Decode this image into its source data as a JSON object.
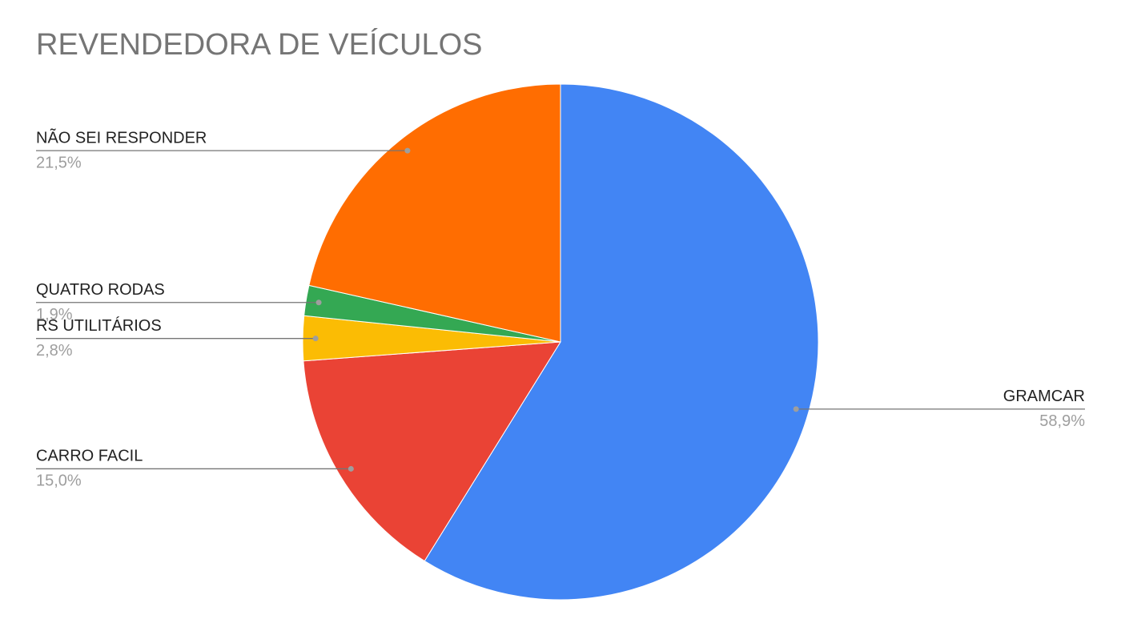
{
  "chart_data": {
    "type": "pie",
    "title": "REVENDEDORA DE VEÍCULOS",
    "categories": [
      "GRAMCAR",
      "CARRO FACIL",
      "RS UTILITÁRIOS",
      "QUATRO RODAS",
      "NÃO SEI RESPONDER"
    ],
    "values": [
      58.9,
      15.0,
      2.8,
      1.9,
      21.5
    ],
    "value_labels": [
      "58,9%",
      "15,0%",
      "2,8%",
      "1,9%",
      "21,5%"
    ],
    "colors": [
      "#4285f4",
      "#ea4335",
      "#fbbc04",
      "#34a853",
      "#ff6d01"
    ]
  }
}
